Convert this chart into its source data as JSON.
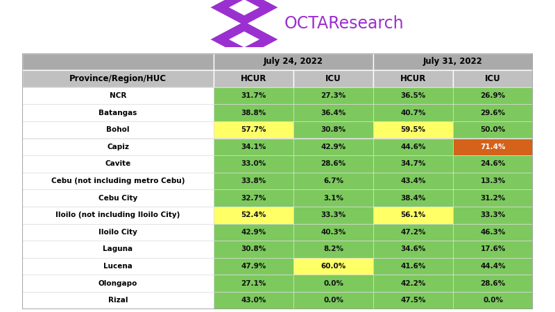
{
  "title": "OCTAResearch",
  "header_date1": "July 24, 2022",
  "header_date2": "July 31, 2022",
  "col_headers": [
    "Province/Region/HUC",
    "HCUR",
    "ICU",
    "HCUR",
    "ICU"
  ],
  "rows": [
    [
      "NCR",
      "31.7%",
      "27.3%",
      "36.5%",
      "26.9%"
    ],
    [
      "Batangas",
      "38.8%",
      "36.4%",
      "40.7%",
      "29.6%"
    ],
    [
      "Bohol",
      "57.7%",
      "30.8%",
      "59.5%",
      "50.0%"
    ],
    [
      "Capiz",
      "34.1%",
      "42.9%",
      "44.6%",
      "71.4%"
    ],
    [
      "Cavite",
      "33.0%",
      "28.6%",
      "34.7%",
      "24.6%"
    ],
    [
      "Cebu (not including metro Cebu)",
      "33.8%",
      "6.7%",
      "43.4%",
      "13.3%"
    ],
    [
      "Cebu City",
      "32.7%",
      "3.1%",
      "38.4%",
      "31.2%"
    ],
    [
      "Iloilo (not including Iloilo City)",
      "52.4%",
      "33.3%",
      "56.1%",
      "33.3%"
    ],
    [
      "Iloilo City",
      "42.9%",
      "40.3%",
      "47.2%",
      "46.3%"
    ],
    [
      "Laguna",
      "30.8%",
      "8.2%",
      "34.6%",
      "17.6%"
    ],
    [
      "Lucena",
      "47.9%",
      "60.0%",
      "41.6%",
      "44.4%"
    ],
    [
      "Olongapo",
      "27.1%",
      "0.0%",
      "42.2%",
      "28.6%"
    ],
    [
      "Rizal",
      "43.0%",
      "0.0%",
      "47.5%",
      "0.0%"
    ]
  ],
  "cell_colors": [
    [
      "white",
      "#7DC95E",
      "#7DC95E",
      "#7DC95E",
      "#7DC95E"
    ],
    [
      "white",
      "#7DC95E",
      "#7DC95E",
      "#7DC95E",
      "#7DC95E"
    ],
    [
      "white",
      "#FFFF66",
      "#7DC95E",
      "#FFFF66",
      "#7DC95E"
    ],
    [
      "white",
      "#7DC95E",
      "#7DC95E",
      "#7DC95E",
      "#D4621A"
    ],
    [
      "white",
      "#7DC95E",
      "#7DC95E",
      "#7DC95E",
      "#7DC95E"
    ],
    [
      "white",
      "#7DC95E",
      "#7DC95E",
      "#7DC95E",
      "#7DC95E"
    ],
    [
      "white",
      "#7DC95E",
      "#7DC95E",
      "#7DC95E",
      "#7DC95E"
    ],
    [
      "white",
      "#FFFF66",
      "#7DC95E",
      "#FFFF66",
      "#7DC95E"
    ],
    [
      "white",
      "#7DC95E",
      "#7DC95E",
      "#7DC95E",
      "#7DC95E"
    ],
    [
      "white",
      "#7DC95E",
      "#7DC95E",
      "#7DC95E",
      "#7DC95E"
    ],
    [
      "white",
      "#7DC95E",
      "#FFFF66",
      "#7DC95E",
      "#7DC95E"
    ],
    [
      "white",
      "#7DC95E",
      "#7DC95E",
      "#7DC95E",
      "#7DC95E"
    ],
    [
      "white",
      "#7DC95E",
      "#7DC95E",
      "#7DC95E",
      "#7DC95E"
    ]
  ],
  "header_bg": "#AAAAAA",
  "subheader_bg": "#C0C0C0",
  "logo_color": "#9B30D0",
  "outer_bg": "#ffffff",
  "table_border_color": "#999999",
  "cell_border_color": "#dddddd",
  "row_name_bg": "#ffffff"
}
